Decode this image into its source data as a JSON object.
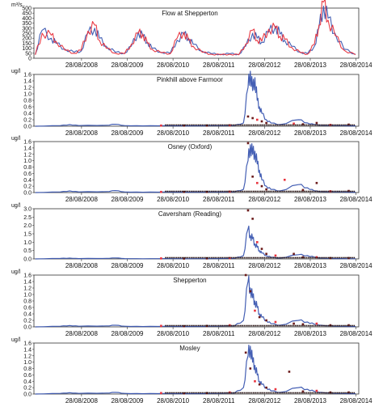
{
  "chart_data": [
    {
      "type": "line",
      "title": "Flow at Shepperton",
      "ylabel": "m³/s",
      "ylim": [
        0,
        500
      ],
      "yticks": [
        "0",
        "50",
        "100",
        "150",
        "200",
        "250",
        "300",
        "350",
        "400",
        "450",
        "500"
      ],
      "xticks": [
        "28/08/2008",
        "28/08/2009",
        "28/08/2010",
        "28/08/2011",
        "28/08/2012",
        "28/08/2013",
        "28/08/2014"
      ],
      "colors": {
        "series_a": "#3a56b0",
        "series_b": "#e8323c"
      },
      "series": [
        {
          "x": [
            2007.65,
            2007.8,
            2008.0,
            2008.1,
            2008.3,
            2008.5,
            2008.65,
            2008.8,
            2008.95,
            2009.05,
            2009.2,
            2009.4,
            2009.6,
            2009.75,
            2009.9,
            2010.0,
            2010.1,
            2010.2,
            2010.4,
            2010.6,
            2010.75,
            2010.9,
            2011.0,
            2011.1,
            2011.3,
            2011.5,
            2011.7,
            2011.9,
            2012.1,
            2012.25,
            2012.4,
            2012.5,
            2012.6,
            2012.75,
            2012.9,
            2013.0,
            2013.1,
            2013.25,
            2013.45,
            2013.6,
            2013.75,
            2013.85,
            2013.95,
            2014.05,
            2014.2,
            2014.4,
            2014.65
          ],
          "values": [
            40,
            280,
            200,
            150,
            90,
            60,
            70,
            250,
            300,
            200,
            120,
            60,
            50,
            120,
            260,
            220,
            160,
            100,
            60,
            50,
            180,
            240,
            200,
            140,
            70,
            45,
            40,
            45,
            40,
            120,
            250,
            200,
            160,
            260,
            320,
            240,
            180,
            120,
            60,
            45,
            120,
            300,
            520,
            400,
            250,
            90,
            40
          ]
        },
        {
          "x": [
            2007.65,
            2007.8,
            2008.0,
            2008.1,
            2008.3,
            2008.5,
            2008.65,
            2008.8,
            2008.95,
            2009.05,
            2009.2,
            2009.4,
            2009.6,
            2009.75,
            2009.9,
            2010.0,
            2010.1,
            2010.2,
            2010.4,
            2010.6,
            2010.75,
            2010.9,
            2011.0,
            2011.1,
            2011.3,
            2011.5,
            2011.7,
            2011.9,
            2012.1,
            2012.25,
            2012.4,
            2012.5,
            2012.6,
            2012.75,
            2012.9,
            2013.0,
            2013.1,
            2013.25,
            2013.45,
            2013.6,
            2013.75,
            2013.85,
            2013.95,
            2014.05,
            2014.2,
            2014.4,
            2014.65
          ],
          "values": [
            35,
            250,
            230,
            170,
            80,
            50,
            80,
            270,
            330,
            180,
            100,
            50,
            45,
            140,
            250,
            240,
            150,
            90,
            55,
            45,
            200,
            260,
            180,
            120,
            60,
            40,
            35,
            40,
            35,
            140,
            280,
            180,
            170,
            290,
            300,
            220,
            190,
            110,
            55,
            40,
            140,
            330,
            560,
            380,
            230,
            80,
            35
          ]
        }
      ]
    },
    {
      "type": "line",
      "title": "Pinkhill above Farmoor",
      "ylabel": "ug/l",
      "ylim": [
        0,
        1.6
      ],
      "yticks": [
        "0.0",
        "0.2",
        "0.4",
        "0.6",
        "0.8",
        "1.0",
        "1.2",
        "1.4",
        "1.6"
      ],
      "xticks": [
        "28/08/2008",
        "28/08/2009",
        "28/08/2010",
        "28/08/2011",
        "28/08/2012",
        "28/08/2013",
        "28/08/2014"
      ],
      "series": [
        {
          "x": [
            2007.65,
            2008.2,
            2008.4,
            2008.6,
            2009.2,
            2009.4,
            2009.6,
            2010.0,
            2010.5,
            2011.0,
            2011.5,
            2012.0,
            2012.2,
            2012.3,
            2012.35,
            2012.4,
            2012.45,
            2012.5,
            2012.55,
            2012.6,
            2012.7,
            2012.8,
            2013.0,
            2013.4,
            2013.6,
            2013.75,
            2013.9,
            2014.2,
            2014.65
          ],
          "values": [
            0.0,
            0.02,
            0.05,
            0.02,
            0.03,
            0.06,
            0.02,
            0.01,
            0.02,
            0.01,
            0.02,
            0.02,
            0.1,
            1.2,
            1.7,
            1.1,
            1.5,
            0.8,
            0.6,
            0.4,
            0.2,
            0.1,
            0.05,
            0.2,
            0.1,
            0.05,
            0.03,
            0.02,
            0.01
          ]
        }
      ],
      "points": {
        "x": [
          2010.4,
          2010.9,
          2011.4,
          2011.9,
          2012.3,
          2012.4,
          2012.5,
          2012.6,
          2012.7,
          2013.3,
          2013.5,
          2013.8,
          2014.1,
          2014.5
        ],
        "values": [
          0.02,
          0.02,
          0.02,
          0.03,
          0.3,
          0.25,
          0.2,
          0.15,
          0.1,
          0.08,
          0.06,
          0.1,
          0.04,
          0.05
        ]
      }
    },
    {
      "type": "line",
      "title": "Osney (Oxford)",
      "ylabel": "ug/l",
      "ylim": [
        0,
        1.6
      ],
      "yticks": [
        "0.0",
        "0.2",
        "0.4",
        "0.6",
        "0.8",
        "1.0",
        "1.2",
        "1.4",
        "1.6"
      ],
      "xticks": [
        "28/08/2008",
        "28/08/2009",
        "28/08/2010",
        "28/08/2011",
        "28/08/2012",
        "28/08/2013",
        "28/08/2014"
      ],
      "series": [
        {
          "x": [
            2007.65,
            2008.2,
            2008.4,
            2008.6,
            2009.2,
            2009.4,
            2009.6,
            2010.0,
            2010.5,
            2011.0,
            2011.5,
            2012.0,
            2012.2,
            2012.3,
            2012.35,
            2012.4,
            2012.45,
            2012.5,
            2012.55,
            2012.6,
            2012.7,
            2012.8,
            2013.0,
            2013.4,
            2013.6,
            2013.75,
            2013.9,
            2014.2,
            2014.65
          ],
          "values": [
            0.0,
            0.02,
            0.05,
            0.02,
            0.03,
            0.06,
            0.02,
            0.01,
            0.02,
            0.01,
            0.02,
            0.02,
            0.1,
            1.0,
            1.5,
            1.2,
            1.3,
            0.9,
            0.7,
            0.4,
            0.2,
            0.1,
            0.05,
            0.25,
            0.15,
            0.05,
            0.03,
            0.02,
            0.01
          ]
        }
      ],
      "points": {
        "x": [
          2010.4,
          2010.9,
          2011.4,
          2011.9,
          2012.3,
          2012.4,
          2012.5,
          2012.6,
          2012.7,
          2013.1,
          2013.5,
          2013.8,
          2014.1,
          2014.5
        ],
        "values": [
          0.02,
          0.02,
          0.02,
          0.03,
          1.55,
          0.5,
          0.3,
          0.2,
          0.1,
          0.4,
          0.08,
          0.3,
          0.04,
          0.05
        ]
      }
    },
    {
      "type": "line",
      "title": "Caversham (Reading)",
      "ylabel": "ug/l",
      "ylim": [
        0,
        3.0
      ],
      "yticks": [
        "0.0",
        "0.5",
        "1.0",
        "1.5",
        "2.0",
        "2.5",
        "3.0"
      ],
      "xticks": [
        "28/08/2008",
        "28/08/2009",
        "28/08/2010",
        "28/08/2011",
        "28/08/2012",
        "28/08/2013",
        "28/08/2014"
      ],
      "series": [
        {
          "x": [
            2007.65,
            2008.2,
            2008.4,
            2008.6,
            2009.2,
            2009.4,
            2009.6,
            2010.0,
            2010.5,
            2011.0,
            2011.5,
            2012.0,
            2012.2,
            2012.3,
            2012.35,
            2012.4,
            2012.45,
            2012.5,
            2012.55,
            2012.6,
            2012.7,
            2012.8,
            2013.0,
            2013.4,
            2013.6,
            2013.75,
            2013.9,
            2014.2,
            2014.65
          ],
          "values": [
            0.0,
            0.03,
            0.05,
            0.02,
            0.03,
            0.06,
            0.02,
            0.01,
            0.02,
            0.01,
            0.02,
            0.03,
            0.2,
            1.8,
            1.4,
            1.2,
            0.9,
            0.7,
            0.5,
            0.35,
            0.2,
            0.1,
            0.05,
            0.25,
            0.2,
            0.1,
            0.05,
            0.02,
            0.01
          ]
        }
      ],
      "points": {
        "x": [
          2010.4,
          2010.9,
          2011.4,
          2011.9,
          2012.3,
          2012.4,
          2012.5,
          2012.6,
          2012.7,
          2012.9,
          2013.3,
          2013.5,
          2013.8,
          2014.1,
          2014.5
        ],
        "values": [
          0.03,
          0.02,
          0.03,
          0.05,
          2.9,
          2.4,
          1.0,
          0.6,
          0.3,
          0.2,
          0.3,
          0.1,
          0.1,
          0.05,
          0.05
        ]
      }
    },
    {
      "type": "line",
      "title": "Shepperton",
      "ylabel": "ug/l",
      "ylim": [
        0,
        1.6
      ],
      "yticks": [
        "0.0",
        "0.2",
        "0.4",
        "0.6",
        "0.8",
        "1.0",
        "1.2",
        "1.4",
        "1.6"
      ],
      "xticks": [
        "28/08/2008",
        "28/08/2009",
        "28/08/2010",
        "28/08/2011",
        "28/08/2012",
        "28/08/2013",
        "28/08/2014"
      ],
      "series": [
        {
          "x": [
            2007.65,
            2008.2,
            2008.4,
            2008.6,
            2009.2,
            2009.4,
            2009.6,
            2010.0,
            2010.5,
            2011.0,
            2011.5,
            2012.0,
            2012.2,
            2012.3,
            2012.35,
            2012.4,
            2012.45,
            2012.5,
            2012.55,
            2012.6,
            2012.7,
            2012.8,
            2013.0,
            2013.4,
            2013.6,
            2013.75,
            2013.9,
            2014.2,
            2014.65
          ],
          "values": [
            0.0,
            0.02,
            0.04,
            0.02,
            0.03,
            0.05,
            0.02,
            0.01,
            0.02,
            0.01,
            0.02,
            0.03,
            0.2,
            1.4,
            1.2,
            0.9,
            0.8,
            0.6,
            0.4,
            0.3,
            0.2,
            0.1,
            0.05,
            0.2,
            0.15,
            0.08,
            0.05,
            0.02,
            0.01
          ]
        }
      ],
      "points": {
        "x": [
          2010.4,
          2010.9,
          2011.4,
          2011.9,
          2012.25,
          2012.35,
          2012.45,
          2012.55,
          2012.7,
          2012.9,
          2013.3,
          2013.5,
          2013.8,
          2014.1,
          2014.5
        ],
        "values": [
          0.03,
          0.02,
          0.03,
          0.05,
          1.6,
          1.1,
          0.5,
          0.3,
          0.2,
          0.15,
          0.1,
          0.08,
          0.1,
          0.05,
          0.05
        ]
      }
    },
    {
      "type": "line",
      "title": "Mosley",
      "ylabel": "ug/l",
      "ylim": [
        0,
        1.6
      ],
      "yticks": [
        "0.0",
        "0.2",
        "0.4",
        "0.6",
        "0.8",
        "1.0",
        "1.2",
        "1.4",
        "1.6"
      ],
      "xticks": [
        "28/08/2008",
        "28/08/2009",
        "28/08/2010",
        "28/08/2011",
        "28/08/2012",
        "28/08/2013",
        "28/08/2014"
      ],
      "series": [
        {
          "x": [
            2007.65,
            2008.2,
            2008.4,
            2008.6,
            2009.2,
            2009.4,
            2009.6,
            2010.0,
            2010.5,
            2011.0,
            2011.5,
            2012.0,
            2012.2,
            2012.3,
            2012.35,
            2012.4,
            2012.45,
            2012.5,
            2012.55,
            2012.6,
            2012.7,
            2012.8,
            2013.0,
            2013.4,
            2013.6,
            2013.75,
            2013.9,
            2014.2,
            2014.65
          ],
          "values": [
            0.0,
            0.02,
            0.04,
            0.02,
            0.03,
            0.05,
            0.02,
            0.01,
            0.02,
            0.01,
            0.02,
            0.03,
            0.2,
            1.2,
            1.5,
            1.0,
            0.9,
            0.6,
            0.4,
            0.3,
            0.2,
            0.1,
            0.05,
            0.2,
            0.15,
            0.08,
            0.05,
            0.02,
            0.01
          ]
        }
      ],
      "points": {
        "x": [
          2010.4,
          2010.9,
          2011.4,
          2011.9,
          2012.25,
          2012.35,
          2012.45,
          2012.55,
          2012.7,
          2012.9,
          2013.2,
          2013.5,
          2013.8,
          2014.1,
          2014.5
        ],
        "values": [
          0.03,
          0.02,
          0.03,
          0.05,
          1.3,
          0.8,
          0.4,
          0.3,
          0.2,
          0.15,
          0.7,
          0.08,
          0.1,
          0.05,
          0.05
        ]
      }
    }
  ]
}
